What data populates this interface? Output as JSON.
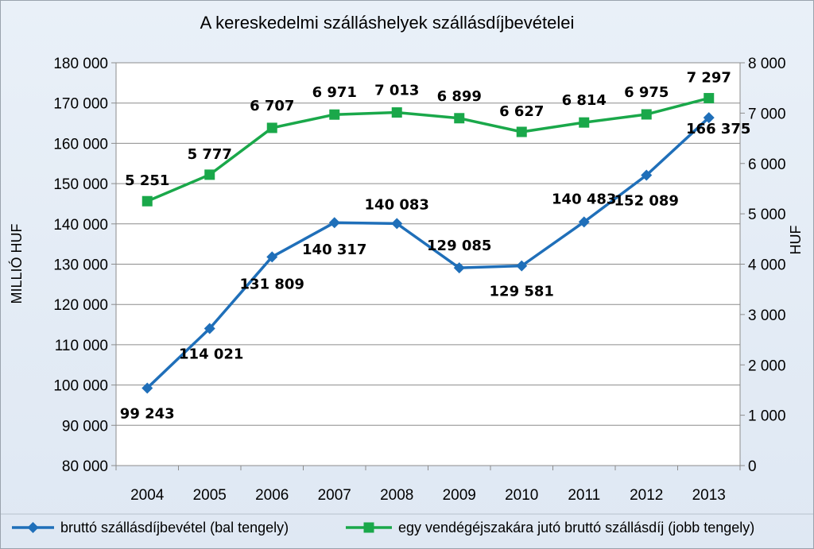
{
  "chart_data": {
    "type": "line",
    "title": "A kereskedelmi szálláshelyek szállásdíjbevételei",
    "categories": [
      "2004",
      "2005",
      "2006",
      "2007",
      "2008",
      "2009",
      "2010",
      "2011",
      "2012",
      "2013"
    ],
    "ylabel": "MILLIÓ HUF",
    "y2label": "HUF",
    "ylim": [
      80000,
      180000
    ],
    "y_ticks": [
      "80 000",
      "90 000",
      "100 000",
      "110 000",
      "120 000",
      "130 000",
      "140 000",
      "150 000",
      "160 000",
      "170 000",
      "180 000"
    ],
    "y2lim": [
      0,
      8000
    ],
    "y2_ticks": [
      "0",
      "1 000",
      "2 000",
      "3 000",
      "4 000",
      "5 000",
      "6 000",
      "7 000",
      "8 000"
    ],
    "grid": "horizontal",
    "legend_position": "bottom",
    "series": [
      {
        "name": "bruttó szállásdíjbevétel (bal tengely)",
        "axis": "left",
        "color": "#1f6fb9",
        "marker": "diamond",
        "values": [
          99243,
          114021,
          131809,
          140317,
          140083,
          129085,
          129581,
          140483,
          152089,
          166375
        ],
        "labels": [
          "99 243",
          "114 021",
          "131 809",
          "140 317",
          "140 083",
          "129 085",
          "129 581",
          "140 483",
          "152 089",
          "166 375"
        ]
      },
      {
        "name": "egy vendégéjszakára jutó bruttó szállásdíj (jobb tengely)",
        "axis": "right",
        "color": "#1aa84a",
        "marker": "square",
        "values": [
          5251,
          5777,
          6707,
          6971,
          7013,
          6899,
          6627,
          6814,
          6975,
          7297
        ],
        "labels": [
          "5 251",
          "5 777",
          "6 707",
          "6 971",
          "7 013",
          "6 899",
          "6 627",
          "6 814",
          "6 975",
          "7 297"
        ]
      }
    ]
  }
}
